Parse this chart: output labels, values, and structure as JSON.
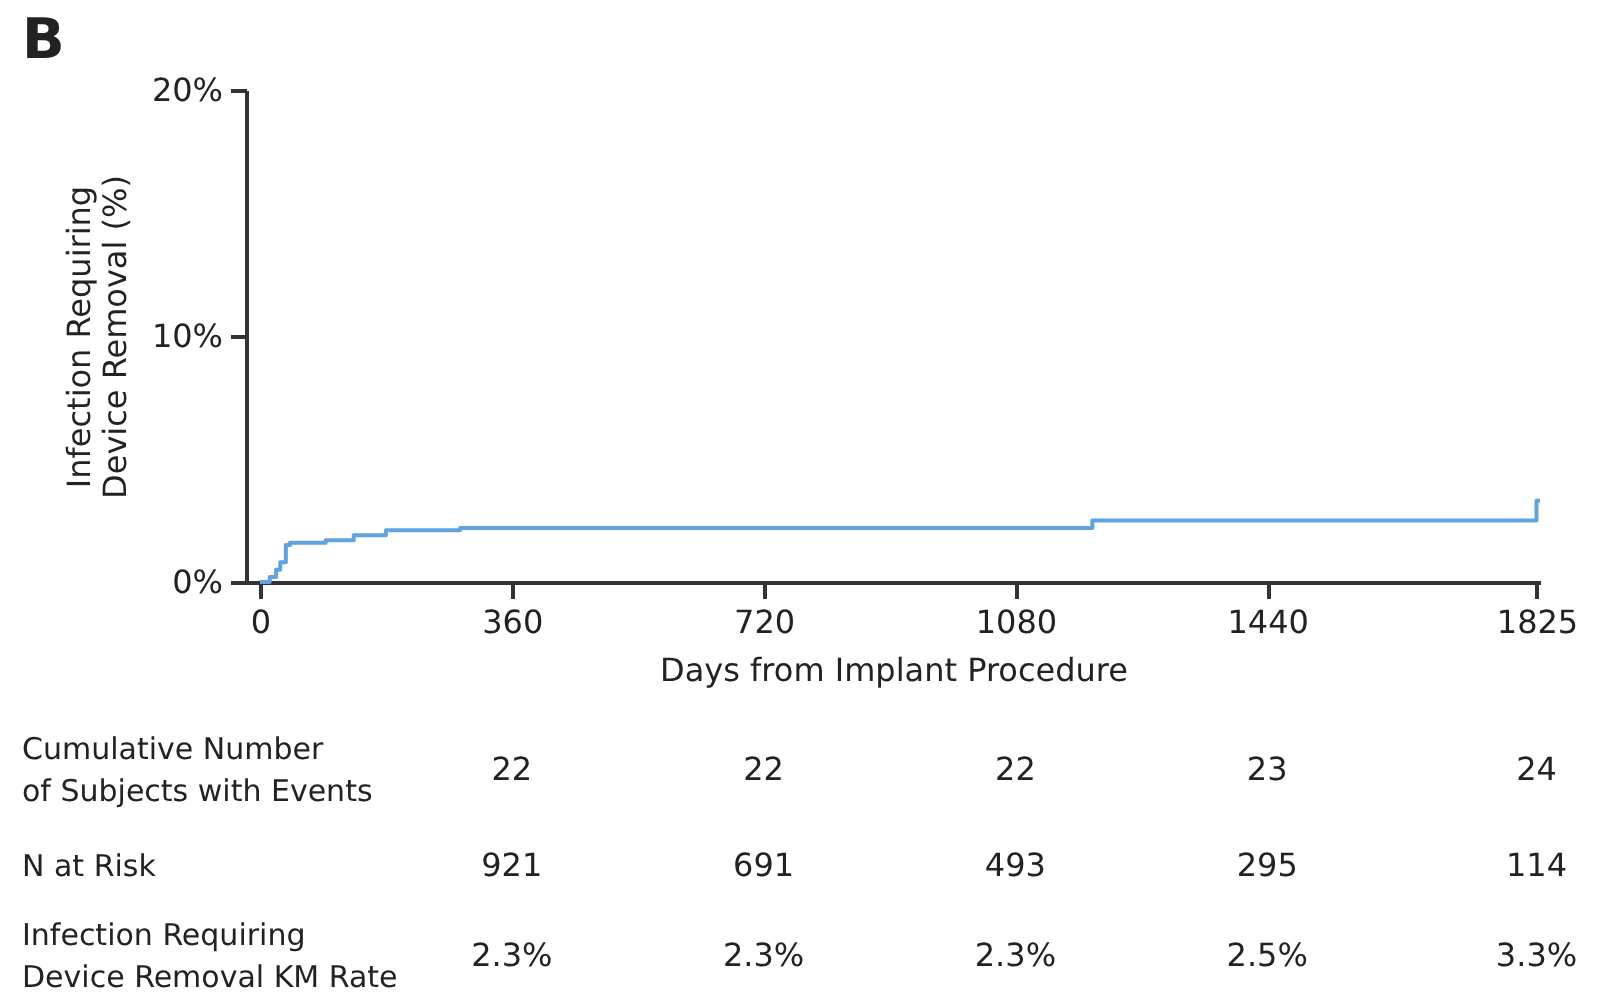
{
  "chart_data": {
    "type": "step",
    "title": "B",
    "xlabel": "Days from Implant Procedure",
    "ylabel": "Infection Requiring\nDevice Removal (%)",
    "x": [
      0,
      14,
      23,
      29,
      37,
      43,
      94,
      134,
      180,
      286,
      1190,
      1825,
      1830
    ],
    "series": [
      {
        "color": "#5fa3e0",
        "values": [
          0,
          0.2,
          0.5,
          0.8,
          1.5,
          1.6,
          1.7,
          1.9,
          2.1,
          2.2,
          2.5,
          3.3,
          3.3
        ]
      }
    ],
    "xlim": [
      -20,
      1830
    ],
    "xticks": [
      0,
      360,
      720,
      1080,
      1440,
      1825
    ],
    "ylim": [
      0,
      20
    ],
    "yticks": [
      {
        "value": 0,
        "label": "0%"
      },
      {
        "value": 10,
        "label": "10%"
      },
      {
        "value": 20,
        "label": "20%"
      }
    ],
    "grid": false,
    "marker": "none",
    "line_style": "solid",
    "annotations": [
      "Cumulative Number\nof Subjects with Events",
      "22",
      "22",
      "22",
      "23",
      "24",
      "N at Risk",
      "921",
      "691",
      "493",
      "295",
      "114",
      "Infection Requiring\nDevice Removal KM Rate",
      "2.3%",
      "2.3%",
      "2.3%",
      "2.5%",
      "3.3%"
    ]
  }
}
